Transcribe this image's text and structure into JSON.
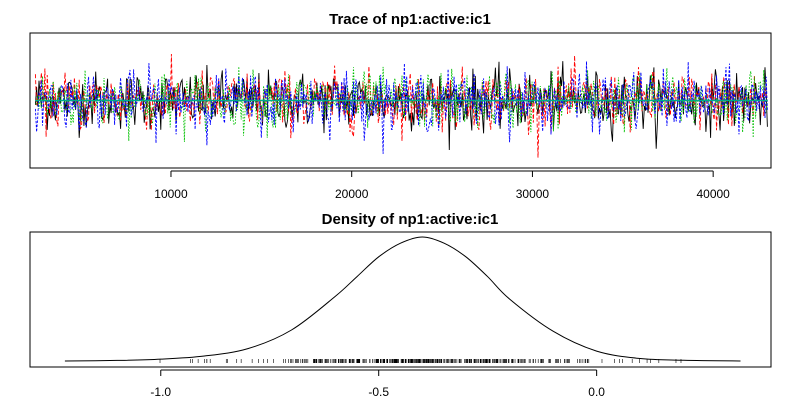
{
  "chart_data": [
    {
      "type": "line",
      "title": "Trace of np1:active:ic1",
      "xlabel": "",
      "ylabel": "",
      "xlim": [
        2200,
        43200
      ],
      "ylim": [
        -1.35,
        0.55
      ],
      "x_ticks": [
        10000,
        20000,
        30000,
        40000
      ],
      "x_tick_labels": [
        "10000",
        "20000",
        "30000",
        "40000"
      ],
      "y_ticks": [],
      "x_start": 2500,
      "x_end": 43000,
      "mean": -0.4,
      "sd": 0.2,
      "series": [
        {
          "color": "#000000",
          "dash": ""
        },
        {
          "color": "#ff0000",
          "dash": "4,2"
        },
        {
          "color": "#00c000",
          "dash": "1.5,1.5"
        },
        {
          "color": "#0000ff",
          "dash": "2.5,1.5"
        }
      ],
      "reference_line": {
        "y": -0.4,
        "color": "#00aa88"
      },
      "grid": false,
      "legend": "none"
    },
    {
      "type": "line",
      "title": "Density of np1:active:ic1",
      "xlabel": "",
      "ylabel": "",
      "xlim": [
        -1.3,
        0.4
      ],
      "x_ticks": [
        -1.0,
        -0.5,
        0.0
      ],
      "x_tick_labels": [
        "-1.0",
        "-0.5",
        "0.0"
      ],
      "y_ticks": [],
      "density": {
        "x": [
          -1.22,
          -1.1,
          -1.0,
          -0.9,
          -0.8,
          -0.7,
          -0.6,
          -0.55,
          -0.5,
          -0.45,
          -0.4,
          -0.35,
          -0.3,
          -0.25,
          -0.2,
          -0.1,
          0.0,
          0.1,
          0.2,
          0.33
        ],
        "y": [
          0.0,
          0.005,
          0.015,
          0.04,
          0.1,
          0.25,
          0.52,
          0.68,
          0.84,
          0.95,
          1.0,
          0.95,
          0.84,
          0.68,
          0.5,
          0.24,
          0.08,
          0.02,
          0.006,
          0.0
        ]
      },
      "rug": {
        "mean": -0.4,
        "sd": 0.2,
        "count": 400
      },
      "grid": false,
      "legend": "none"
    }
  ]
}
